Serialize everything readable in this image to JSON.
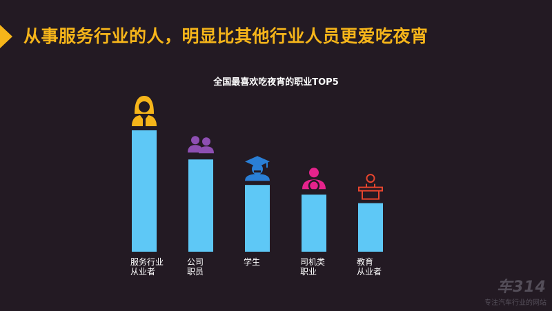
{
  "headline": "从事服务行业的人，明显比其他行业人员更爱吃夜宵",
  "chart_data": {
    "type": "bar",
    "title": "全国最喜欢吃夜宵的职业TOP5",
    "xlabel": "",
    "ylabel": "",
    "ylim": [
      0,
      100
    ],
    "grid": false,
    "bar_color": "#5ec8f6",
    "categories": [
      {
        "lines": [
          "服务行业",
          "从业者"
        ],
        "icon": "female-worker-icon",
        "icon_color": "#f6b51a"
      },
      {
        "lines": [
          "公司",
          "职员"
        ],
        "icon": "office-staff-icon",
        "icon_color": "#8e4fb3"
      },
      {
        "lines": [
          "学生"
        ],
        "icon": "graduate-icon",
        "icon_color": "#2a7fd6"
      },
      {
        "lines": [
          "司机类",
          "职业"
        ],
        "icon": "driver-icon",
        "icon_color": "#e6238c"
      },
      {
        "lines": [
          "教育",
          "从业者"
        ],
        "icon": "teacher-icon",
        "icon_color": "#e8452e"
      }
    ],
    "values": [
      100,
      76,
      55,
      47,
      40
    ]
  },
  "watermark": {
    "logo": "车314",
    "tagline": "专注汽车行业的网站"
  }
}
